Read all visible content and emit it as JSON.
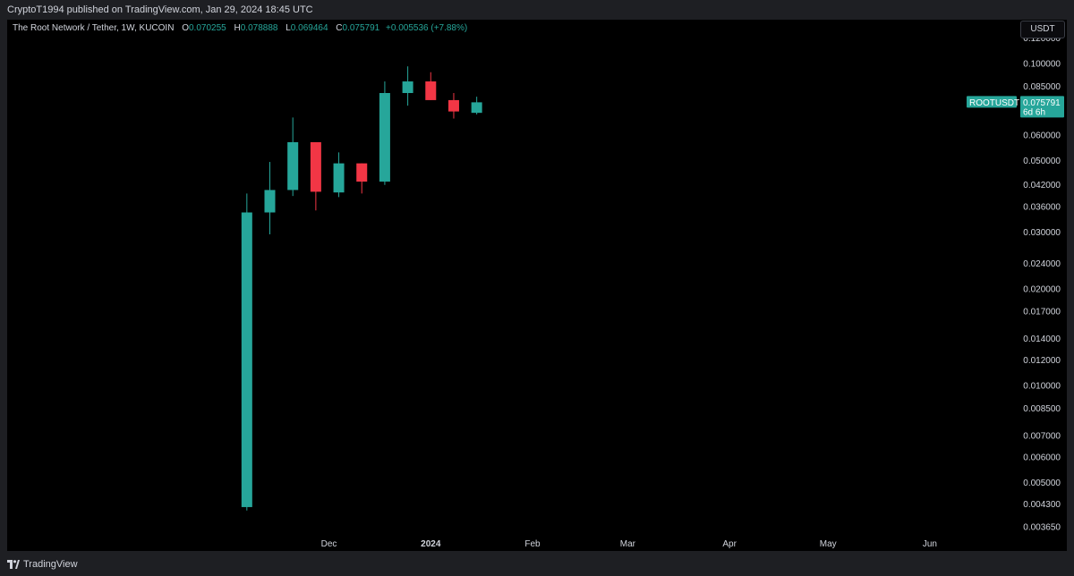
{
  "header": {
    "publisher": "CryptoT1994 published on TradingView.com, Jan 29, 2024 18:45 UTC"
  },
  "legend": {
    "symbol": "The Root Network / Tether, 1W, KUCOIN",
    "o_label": "O",
    "o_value": "0.070255",
    "h_label": "H",
    "h_value": "0.078888",
    "l_label": "L",
    "l_value": "0.069464",
    "c_label": "C",
    "c_value": "0.075791",
    "change": "+0.005536 (+7.88%)"
  },
  "currency_button": "USDT",
  "price_tag": {
    "ticker": "ROOTUSDT",
    "price": "0.075791",
    "countdown": "6d 6h"
  },
  "footer": {
    "brand": "TradingView"
  },
  "colors": {
    "up": "#26a69a",
    "down": "#f23645",
    "background": "#000000",
    "axis_text": "#d1d4dc"
  },
  "chart_data": {
    "type": "candlestick",
    "scale": "log",
    "ylim": [
      0.0034,
      0.13
    ],
    "y_ticks": [
      "0.120000",
      "0.100000",
      "0.085000",
      "0.060000",
      "0.050000",
      "0.042000",
      "0.036000",
      "0.030000",
      "0.024000",
      "0.020000",
      "0.017000",
      "0.014000",
      "0.012000",
      "0.010000",
      "0.008500",
      "0.007000",
      "0.006000",
      "0.005000",
      "0.004300",
      "0.003650"
    ],
    "x_ticks": [
      {
        "label": "Dec",
        "date": "2023-12-01",
        "bold": false
      },
      {
        "label": "2024",
        "date": "2024-01-01",
        "bold": true
      },
      {
        "label": "Feb",
        "date": "2024-02-01",
        "bold": false
      },
      {
        "label": "Mar",
        "date": "2024-03-01",
        "bold": false
      },
      {
        "label": "Apr",
        "date": "2024-04-01",
        "bold": false
      },
      {
        "label": "May",
        "date": "2024-05-01",
        "bold": false
      },
      {
        "label": "Jun",
        "date": "2024-06-01",
        "bold": false
      }
    ],
    "x_range": [
      "2023-08-25",
      "2024-06-28"
    ],
    "candles": [
      {
        "date": "2023-11-06",
        "open": 0.0042,
        "high": 0.0395,
        "low": 0.0041,
        "close": 0.0345
      },
      {
        "date": "2023-11-13",
        "open": 0.0345,
        "high": 0.0495,
        "low": 0.0295,
        "close": 0.0405
      },
      {
        "date": "2023-11-20",
        "open": 0.0405,
        "high": 0.068,
        "low": 0.0388,
        "close": 0.057
      },
      {
        "date": "2023-11-27",
        "open": 0.057,
        "high": 0.057,
        "low": 0.035,
        "close": 0.04
      },
      {
        "date": "2023-12-04",
        "open": 0.0398,
        "high": 0.053,
        "low": 0.0385,
        "close": 0.049
      },
      {
        "date": "2023-12-11",
        "open": 0.049,
        "high": 0.049,
        "low": 0.0395,
        "close": 0.043
      },
      {
        "date": "2023-12-18",
        "open": 0.043,
        "high": 0.088,
        "low": 0.042,
        "close": 0.081
      },
      {
        "date": "2023-12-25",
        "open": 0.081,
        "high": 0.098,
        "low": 0.074,
        "close": 0.088
      },
      {
        "date": "2024-01-01",
        "open": 0.088,
        "high": 0.094,
        "low": 0.077,
        "close": 0.077
      },
      {
        "date": "2024-01-08",
        "open": 0.077,
        "high": 0.081,
        "low": 0.0675,
        "close": 0.071
      },
      {
        "date": "2024-01-15",
        "open": 0.0703,
        "high": 0.0789,
        "low": 0.0695,
        "close": 0.0758
      }
    ],
    "last_price": 0.075791
  }
}
